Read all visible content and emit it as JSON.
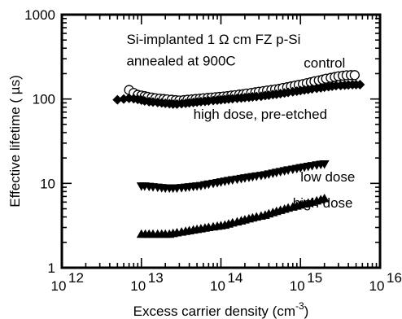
{
  "chart_data": {
    "type": "scatter",
    "xscale": "log",
    "yscale": "log",
    "xlim": [
      1000000000000.0,
      1e+16
    ],
    "ylim": [
      1,
      1000
    ],
    "xlabel": "Excess carrier density (cm",
    "xlabel_sup": "-3",
    "xlabel_end": ")",
    "ylabel": "Effective lifetime ( µs)",
    "x_ticks": [
      {
        "value": 1000000000000.0,
        "base": "10",
        "exp": "12"
      },
      {
        "value": 10000000000000.0,
        "base": "10",
        "exp": "13"
      },
      {
        "value": 100000000000000.0,
        "base": "10",
        "exp": "14"
      },
      {
        "value": 1000000000000000.0,
        "base": "10",
        "exp": "15"
      },
      {
        "value": 1e+16,
        "base": "10",
        "exp": "16"
      }
    ],
    "y_ticks": [
      {
        "value": 1,
        "label": "1"
      },
      {
        "value": 10,
        "label": "10"
      },
      {
        "value": 100,
        "label": "100"
      },
      {
        "value": 1000,
        "label": "1000"
      }
    ],
    "annotations": [
      {
        "id": "line1",
        "text": "Si-implanted 1 Ω cm FZ p-Si",
        "x": 6500000000000.0,
        "y": 450
      },
      {
        "id": "line2",
        "text": "annealed at 900C",
        "x": 6500000000000.0,
        "y": 250
      },
      {
        "id": "control",
        "text": "control",
        "x": 1100000000000000.0,
        "y": 235
      },
      {
        "id": "highdose-pe",
        "text": "high dose, pre-etched",
        "x": 45000000000000.0,
        "y": 58
      },
      {
        "id": "lowdose",
        "text": "low dose",
        "x": 1000000000000000.0,
        "y": 10.5
      },
      {
        "id": "highdose",
        "text": "high dose",
        "x": 800000000000000.0,
        "y": 5.2
      }
    ],
    "series": [
      {
        "key": "control",
        "marker": "circle-open",
        "x": [
          7000000000000.0,
          8000000000000.0,
          9000000000000.0,
          10000000000000.0,
          11000000000000.0,
          12000000000000.0,
          13500000000000.0,
          15000000000000.0,
          17000000000000.0,
          19000000000000.0,
          21000000000000.0,
          24000000000000.0,
          27000000000000.0,
          30000000000000.0,
          34000000000000.0,
          38000000000000.0,
          43000000000000.0,
          48000000000000.0,
          54000000000000.0,
          60000000000000.0,
          68000000000000.0,
          76000000000000.0,
          85000000000000.0,
          95000000000000.0,
          107000000000000.0,
          120000000000000.0,
          135000000000000.0,
          150000000000000.0,
          170000000000000.0,
          190000000000000.0,
          210000000000000.0,
          240000000000000.0,
          270000000000000.0,
          300000000000000.0,
          340000000000000.0,
          380000000000000.0,
          430000000000000.0,
          480000000000000.0,
          540000000000000.0,
          600000000000000.0,
          680000000000000.0,
          760000000000000.0,
          850000000000000.0,
          950000000000000.0,
          1070000000000000.0,
          1200000000000000.0,
          1350000000000000.0,
          1500000000000000.0,
          1700000000000000.0,
          1900000000000000.0,
          2100000000000000.0,
          2400000000000000.0,
          2700000000000000.0,
          3000000000000000.0,
          3400000000000000.0,
          3800000000000000.0,
          4300000000000000.0,
          4800000000000000.0
        ],
        "y": [
          128,
          118,
          112,
          110,
          108,
          106,
          104,
          102,
          101,
          100,
          99,
          98,
          97,
          96,
          97,
          98,
          99,
          100,
          101,
          102,
          103,
          104,
          105,
          106,
          107,
          108,
          110,
          111,
          113,
          114,
          116,
          118,
          120,
          122,
          124,
          126,
          128,
          130,
          132,
          135,
          138,
          141,
          144,
          147,
          150,
          154,
          158,
          162,
          166,
          170,
          174,
          178,
          182,
          186,
          189,
          191,
          192,
          192
        ]
      },
      {
        "key": "high-dose-pre-etched",
        "marker": "diamond-filled",
        "x": [
          5000000000000.0,
          6000000000000.0,
          7000000000000.0,
          8000000000000.0,
          9000000000000.0,
          10000000000000.0,
          11000000000000.0,
          12500000000000.0,
          14000000000000.0,
          16000000000000.0,
          18000000000000.0,
          20000000000000.0,
          22500000000000.0,
          25000000000000.0,
          28000000000000.0,
          32000000000000.0,
          36000000000000.0,
          40000000000000.0,
          45000000000000.0,
          50000000000000.0,
          56000000000000.0,
          63000000000000.0,
          70000000000000.0,
          80000000000000.0,
          90000000000000.0,
          100000000000000.0,
          112000000000000.0,
          125000000000000.0,
          140000000000000.0,
          160000000000000.0,
          180000000000000.0,
          200000000000000.0,
          225000000000000.0,
          250000000000000.0,
          280000000000000.0,
          320000000000000.0,
          360000000000000.0,
          400000000000000.0,
          450000000000000.0,
          500000000000000.0,
          560000000000000.0,
          630000000000000.0,
          700000000000000.0,
          800000000000000.0,
          900000000000000.0,
          1000000000000000.0,
          1120000000000000.0,
          1250000000000000.0,
          1400000000000000.0,
          1600000000000000.0,
          1800000000000000.0,
          2000000000000000.0,
          2250000000000000.0,
          2500000000000000.0,
          2800000000000000.0,
          3200000000000000.0,
          3600000000000000.0,
          4000000000000000.0,
          4500000000000000.0,
          5000000000000000.0,
          5600000000000000.0
        ],
        "y": [
          98,
          100,
          102,
          101,
          99,
          97,
          95,
          93,
          92,
          91,
          90,
          89,
          88,
          87,
          87,
          88,
          89,
          90,
          91,
          92,
          93,
          94,
          95,
          96,
          97,
          98,
          99,
          100,
          101,
          102,
          103,
          104,
          105,
          106,
          107,
          108,
          110,
          111,
          113,
          114,
          116,
          118,
          120,
          122,
          124,
          126,
          128,
          130,
          132,
          134,
          136,
          138,
          140,
          142,
          144,
          145,
          146,
          147,
          148,
          148,
          148
        ]
      },
      {
        "key": "low-dose",
        "marker": "triangle-down-filled",
        "x": [
          10000000000000.0,
          11000000000000.0,
          12500000000000.0,
          14000000000000.0,
          16000000000000.0,
          18000000000000.0,
          20000000000000.0,
          22500000000000.0,
          25000000000000.0,
          28000000000000.0,
          32000000000000.0,
          36000000000000.0,
          40000000000000.0,
          45000000000000.0,
          50000000000000.0,
          56000000000000.0,
          63000000000000.0,
          70000000000000.0,
          80000000000000.0,
          90000000000000.0,
          100000000000000.0,
          112000000000000.0,
          125000000000000.0,
          140000000000000.0,
          160000000000000.0,
          180000000000000.0,
          200000000000000.0,
          225000000000000.0,
          250000000000000.0,
          280000000000000.0,
          320000000000000.0,
          360000000000000.0,
          400000000000000.0,
          450000000000000.0,
          500000000000000.0,
          560000000000000.0,
          630000000000000.0,
          700000000000000.0,
          800000000000000.0,
          900000000000000.0,
          1000000000000000.0,
          1120000000000000.0,
          1250000000000000.0,
          1400000000000000.0,
          1600000000000000.0,
          1800000000000000.0,
          2000000000000000.0
        ],
        "y": [
          9.3,
          9.3,
          9.2,
          9.1,
          9.0,
          8.9,
          8.8,
          8.8,
          8.8,
          8.8,
          8.9,
          9.0,
          9.1,
          9.2,
          9.3,
          9.4,
          9.6,
          9.8,
          10.0,
          10.2,
          10.4,
          10.6,
          10.8,
          11.0,
          11.2,
          11.4,
          11.6,
          11.8,
          12.0,
          12.2,
          12.4,
          12.6,
          12.9,
          13.2,
          13.5,
          13.8,
          14.1,
          14.4,
          14.7,
          15.0,
          15.3,
          15.6,
          15.9,
          16.2,
          16.5,
          16.8,
          17.0
        ]
      },
      {
        "key": "high-dose",
        "marker": "triangle-up-filled",
        "x": [
          10000000000000.0,
          11200000000000.0,
          12500000000000.0,
          14000000000000.0,
          16000000000000.0,
          18000000000000.0,
          20000000000000.0,
          22500000000000.0,
          25000000000000.0,
          28000000000000.0,
          32000000000000.0,
          36000000000000.0,
          40000000000000.0,
          45000000000000.0,
          50000000000000.0,
          56000000000000.0,
          63000000000000.0,
          70000000000000.0,
          80000000000000.0,
          90000000000000.0,
          100000000000000.0,
          112000000000000.0,
          125000000000000.0,
          140000000000000.0,
          160000000000000.0,
          180000000000000.0,
          200000000000000.0,
          225000000000000.0,
          250000000000000.0,
          280000000000000.0,
          320000000000000.0,
          360000000000000.0,
          400000000000000.0,
          450000000000000.0,
          500000000000000.0,
          560000000000000.0,
          630000000000000.0,
          700000000000000.0,
          800000000000000.0,
          900000000000000.0,
          1000000000000000.0,
          1120000000000000.0,
          1250000000000000.0,
          1400000000000000.0,
          1600000000000000.0,
          1800000000000000.0,
          2000000000000000.0
        ],
        "y": [
          2.5,
          2.5,
          2.5,
          2.5,
          2.5,
          2.5,
          2.5,
          2.5,
          2.55,
          2.6,
          2.65,
          2.7,
          2.75,
          2.8,
          2.85,
          2.9,
          2.95,
          3.0,
          3.05,
          3.1,
          3.15,
          3.2,
          3.3,
          3.4,
          3.5,
          3.6,
          3.7,
          3.8,
          3.9,
          4.0,
          4.1,
          4.2,
          4.35,
          4.5,
          4.65,
          4.8,
          4.95,
          5.1,
          5.25,
          5.4,
          5.55,
          5.7,
          5.85,
          6.0,
          6.2,
          6.4,
          6.6
        ]
      }
    ]
  }
}
